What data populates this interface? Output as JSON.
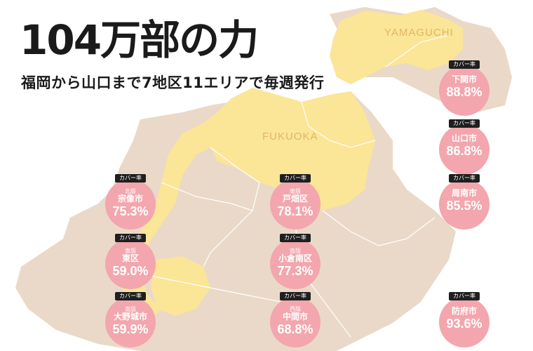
{
  "headline": "104万部の力",
  "subheadline": "福岡から山口まで7地区11エリアで毎週発行",
  "map_labels": {
    "yamaguchi": "YAMAGUCHI",
    "fukuoka": "FUKUOKA"
  },
  "colors": {
    "land": "#ead9c8",
    "highlight": "#fbe597",
    "badge": "#f3a6ad",
    "tag": "#1f1f1f",
    "label": "#e0b56a"
  },
  "badges": [
    {
      "tag": "カバー率",
      "ward": "北版",
      "city": "宗像市",
      "rate": "75.3%"
    },
    {
      "tag": "カバー率",
      "ward": "東版",
      "city": "東区",
      "rate": "59.0%"
    },
    {
      "tag": "カバー率",
      "ward": "南版",
      "city": "大野城市",
      "rate": "59.9%"
    },
    {
      "tag": "カバー率",
      "ward": "東版",
      "city": "戸畑区",
      "rate": "78.1%"
    },
    {
      "tag": "カバー率",
      "ward": "南版",
      "city": "小倉南区",
      "rate": "77.3%"
    },
    {
      "tag": "カバー率",
      "ward": "西版",
      "city": "中間市",
      "rate": "68.8%"
    },
    {
      "tag": "カバー率",
      "ward": "",
      "city": "下関市",
      "rate": "88.8%"
    },
    {
      "tag": "カバー率",
      "ward": "",
      "city": "山口市",
      "rate": "86.8%"
    },
    {
      "tag": "カバー率",
      "ward": "",
      "city": "周南市",
      "rate": "85.5%"
    },
    {
      "tag": "カバー率",
      "ward": "",
      "city": "防府市",
      "rate": "93.6%"
    }
  ]
}
